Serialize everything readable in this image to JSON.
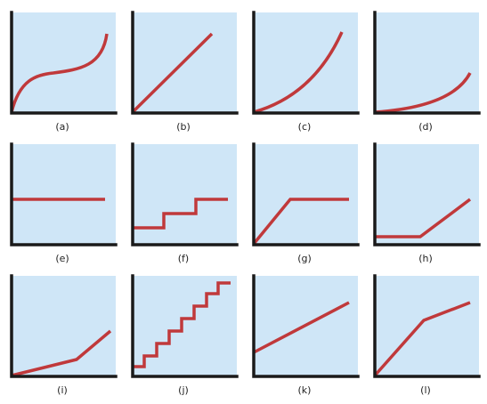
{
  "colors": {
    "background": "#cfe6f7",
    "axis": "#1a1a1a",
    "curve": "#c0393b"
  },
  "graphs": [
    {
      "id": "a",
      "label": "(a)",
      "shape": "s-curve"
    },
    {
      "id": "b",
      "label": "(b)",
      "shape": "straight-line-rising"
    },
    {
      "id": "c",
      "label": "(c)",
      "shape": "concave-up-curve"
    },
    {
      "id": "d",
      "label": "(d)",
      "shape": "exponential-curve"
    },
    {
      "id": "e",
      "label": "(e)",
      "shape": "horizontal-line"
    },
    {
      "id": "f",
      "label": "(f)",
      "shape": "step-function-three-steps"
    },
    {
      "id": "g",
      "label": "(g)",
      "shape": "rise-then-flat"
    },
    {
      "id": "h",
      "label": "(h)",
      "shape": "flat-then-rise"
    },
    {
      "id": "i",
      "label": "(i)",
      "shape": "slow-rise-then-steep-rise"
    },
    {
      "id": "j",
      "label": "(j)",
      "shape": "staircase-many-steps"
    },
    {
      "id": "k",
      "label": "(k)",
      "shape": "line-with-positive-intercept"
    },
    {
      "id": "l",
      "label": "(l)",
      "shape": "steep-rise-then-gentle-rise"
    }
  ]
}
